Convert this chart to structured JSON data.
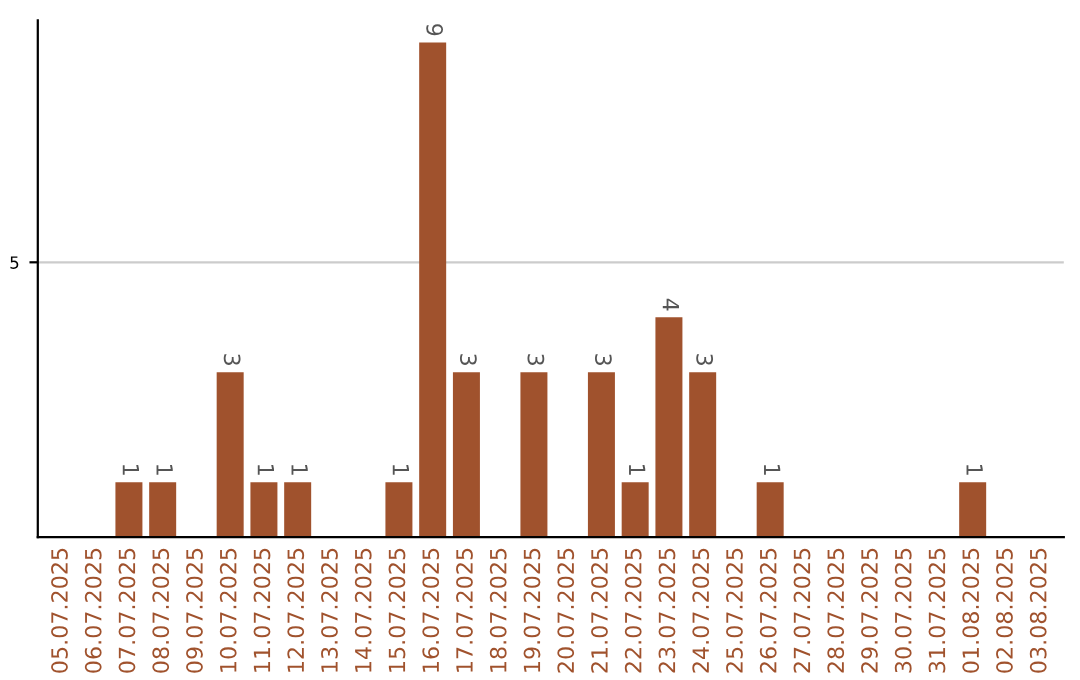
{
  "chart_data": {
    "type": "bar",
    "categories": [
      "05.07.2025",
      "06.07.2025",
      "07.07.2025",
      "08.07.2025",
      "09.07.2025",
      "10.07.2025",
      "11.07.2025",
      "12.07.2025",
      "13.07.2025",
      "14.07.2025",
      "15.07.2025",
      "16.07.2025",
      "17.07.2025",
      "18.07.2025",
      "19.07.2025",
      "20.07.2025",
      "21.07.2025",
      "22.07.2025",
      "23.07.2025",
      "24.07.2025",
      "25.07.2025",
      "26.07.2025",
      "27.07.2025",
      "28.07.2025",
      "29.07.2025",
      "30.07.2025",
      "31.07.2025",
      "01.08.2025",
      "02.08.2025",
      "03.08.2025"
    ],
    "values": [
      0,
      0,
      1,
      1,
      0,
      3,
      1,
      1,
      0,
      0,
      1,
      9,
      3,
      0,
      3,
      0,
      3,
      1,
      4,
      3,
      0,
      1,
      0,
      0,
      0,
      0,
      0,
      1,
      0,
      0
    ],
    "value_labels": [
      null,
      null,
      "1",
      "1",
      null,
      "3",
      "1",
      "1",
      null,
      null,
      "1",
      "9",
      "3",
      null,
      "3",
      null,
      "3",
      "1",
      "4",
      "3",
      null,
      "1",
      null,
      null,
      null,
      null,
      null,
      "1",
      null,
      null
    ],
    "color": "#a0522d",
    "ylim": [
      0,
      9.4
    ],
    "yticks": [
      5
    ],
    "grid": "y"
  }
}
